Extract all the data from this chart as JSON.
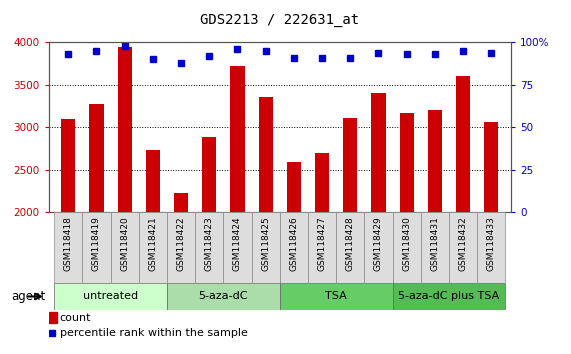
{
  "title": "GDS2213 / 222631_at",
  "categories": [
    "GSM118418",
    "GSM118419",
    "GSM118420",
    "GSM118421",
    "GSM118422",
    "GSM118423",
    "GSM118424",
    "GSM118425",
    "GSM118426",
    "GSM118427",
    "GSM118428",
    "GSM118429",
    "GSM118430",
    "GSM118431",
    "GSM118432",
    "GSM118433"
  ],
  "bar_values": [
    3100,
    3280,
    3950,
    2730,
    2230,
    2890,
    3720,
    3360,
    2590,
    2700,
    3110,
    3410,
    3170,
    3210,
    3600,
    3060
  ],
  "percentile_values": [
    93,
    95,
    98,
    90,
    88,
    92,
    96,
    95,
    91,
    91,
    91,
    94,
    93,
    93,
    95,
    94
  ],
  "bar_color": "#cc0000",
  "dot_color": "#0000cc",
  "ylim_left": [
    2000,
    4000
  ],
  "ylim_right": [
    0,
    100
  ],
  "yticks_left": [
    2000,
    2500,
    3000,
    3500,
    4000
  ],
  "yticks_right": [
    0,
    25,
    50,
    75,
    100
  ],
  "background_plot": "#ffffff",
  "xticklabel_bg": "#dddddd",
  "agent_groups": [
    {
      "label": "untreated",
      "start": 0,
      "end": 3,
      "color": "#ccffcc"
    },
    {
      "label": "5-aza-dC",
      "start": 4,
      "end": 7,
      "color": "#aaddaa"
    },
    {
      "label": "TSA",
      "start": 8,
      "end": 11,
      "color": "#66cc66"
    },
    {
      "label": "5-aza-dC plus TSA",
      "start": 12,
      "end": 15,
      "color": "#55bb55"
    }
  ],
  "legend_count_color": "#cc0000",
  "legend_dot_color": "#0000cc",
  "agent_label": "agent",
  "bar_width": 0.5
}
